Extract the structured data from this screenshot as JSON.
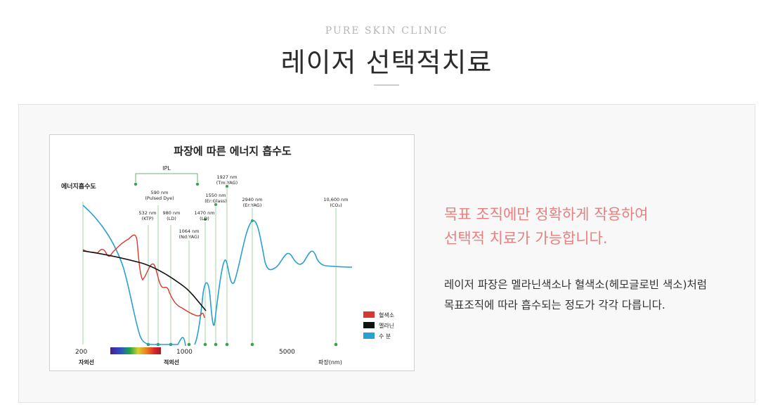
{
  "header": {
    "subtitle": "PURE SKIN CLINIC",
    "title": "레이저 선택적치료"
  },
  "description": {
    "headline_line1": "목표 조직에만 정확하게 작용하여",
    "headline_line2": "선택적 치료가 가능합니다.",
    "body_line1": "레이저 파장은 멜라닌색소나 혈색소(헤모글로빈 색소)처럼",
    "body_line2": "목표조직에 따라 흡수되는 정도가 각각 다릅니다.",
    "headline_color": "#e7817f"
  },
  "chart_data": {
    "type": "line",
    "title": "파장에 따른 에너지 흡수도",
    "ylabel": "에너지흡수도",
    "xlabel": "파장(nm)",
    "x_ticks": [
      "200",
      "1000",
      "5000"
    ],
    "uv_label": "자외선",
    "ir_label": "적외선",
    "ipl_label": "IPL",
    "legend_position": "bottom-right",
    "series": [
      {
        "name": "혈색소",
        "color": "#d7392f"
      },
      {
        "name": "멜라닌",
        "color": "#111111"
      },
      {
        "name": "수 분",
        "color": "#2a9fd1"
      }
    ],
    "wavelength_markers": [
      {
        "line1": "532 nm",
        "line2": "(KTP)"
      },
      {
        "line1": "590 nm",
        "line2": "(Pulsed Dye)"
      },
      {
        "line1": "980 nm",
        "line2": "(LD)"
      },
      {
        "line1": "1064 nm",
        "line2": "(Nd:YAG)"
      },
      {
        "line1": "1470 nm",
        "line2": "(LD)"
      },
      {
        "line1": "1550 nm",
        "line2": "(Er:Glass)"
      },
      {
        "line1": "1927 nm",
        "line2": "(Tm:YAG)"
      },
      {
        "line1": "2940 nm",
        "line2": "(Er:YAG)"
      },
      {
        "line1": "10,600 nm",
        "line2": "(CO₂)"
      }
    ]
  }
}
